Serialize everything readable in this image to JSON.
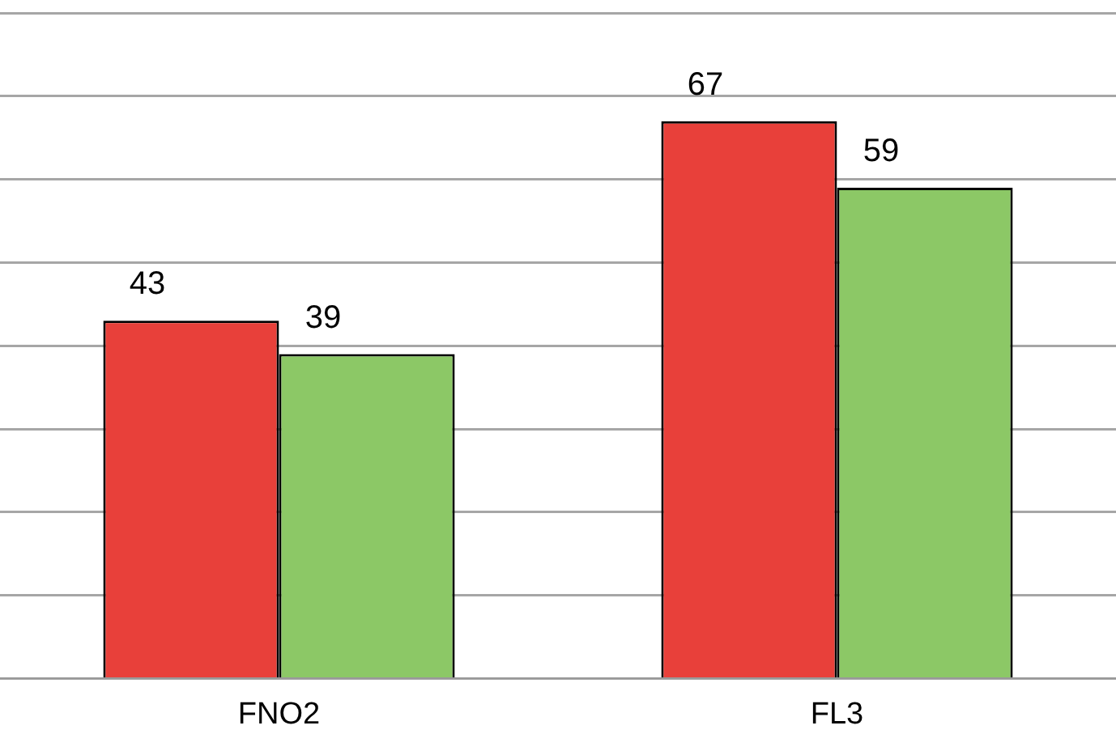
{
  "chart_data": {
    "type": "bar",
    "categories": [
      "FNO2",
      "FL3"
    ],
    "series": [
      {
        "color": "#e8403a",
        "values": [
          43,
          67
        ]
      },
      {
        "color": "#8cc866",
        "values": [
          39,
          59
        ]
      }
    ],
    "ylim": [
      0,
      80
    ],
    "grid": "y",
    "data_labels": true,
    "tick_labels": "x"
  }
}
